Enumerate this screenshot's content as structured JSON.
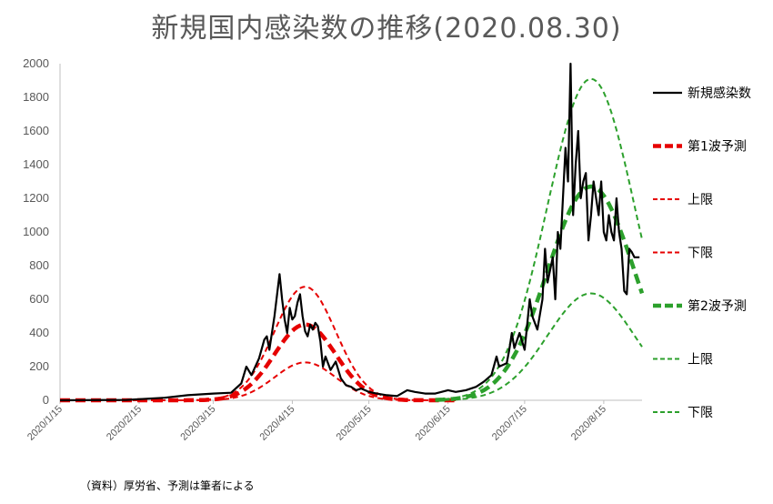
{
  "chart_data": {
    "type": "line",
    "title": "新規国内感染数の推移(2020.08.30)",
    "source_note": "（資料）厚労省、予測は筆者による",
    "xlabel": "",
    "ylabel": "",
    "ylim": [
      0,
      2000
    ],
    "xlim": [
      "2020-01-15",
      "2020-08-30"
    ],
    "y_ticks": [
      0,
      200,
      400,
      600,
      800,
      1000,
      1200,
      1400,
      1600,
      1800,
      2000
    ],
    "x_ticks": [
      {
        "date": "2020-01-15",
        "label": "2020/1/15"
      },
      {
        "date": "2020-02-15",
        "label": "2020/2/15"
      },
      {
        "date": "2020-03-15",
        "label": "2020/3/15"
      },
      {
        "date": "2020-04-15",
        "label": "2020/4/15"
      },
      {
        "date": "2020-05-15",
        "label": "2020/5/15"
      },
      {
        "date": "2020-06-15",
        "label": "2020/6/15"
      },
      {
        "date": "2020-07-15",
        "label": "2020/7/15"
      },
      {
        "date": "2020-08-15",
        "label": "2020/8/15"
      }
    ],
    "grid": false,
    "legend_position": "right",
    "series": [
      {
        "name": "新規感染数",
        "color": "#000000",
        "style": "solid",
        "width": 2.2,
        "points": [
          [
            "2020-01-15",
            0
          ],
          [
            "2020-02-10",
            2
          ],
          [
            "2020-02-25",
            15
          ],
          [
            "2020-03-05",
            30
          ],
          [
            "2020-03-15",
            40
          ],
          [
            "2020-03-22",
            45
          ],
          [
            "2020-03-26",
            100
          ],
          [
            "2020-03-28",
            200
          ],
          [
            "2020-03-30",
            150
          ],
          [
            "2020-04-02",
            250
          ],
          [
            "2020-04-04",
            360
          ],
          [
            "2020-04-05",
            380
          ],
          [
            "2020-04-06",
            300
          ],
          [
            "2020-04-08",
            500
          ],
          [
            "2020-04-10",
            750
          ],
          [
            "2020-04-11",
            600
          ],
          [
            "2020-04-12",
            480
          ],
          [
            "2020-04-13",
            400
          ],
          [
            "2020-04-14",
            550
          ],
          [
            "2020-04-15",
            480
          ],
          [
            "2020-04-16",
            500
          ],
          [
            "2020-04-17",
            580
          ],
          [
            "2020-04-18",
            630
          ],
          [
            "2020-04-19",
            500
          ],
          [
            "2020-04-20",
            410
          ],
          [
            "2020-04-21",
            380
          ],
          [
            "2020-04-22",
            450
          ],
          [
            "2020-04-23",
            420
          ],
          [
            "2020-04-24",
            460
          ],
          [
            "2020-04-25",
            440
          ],
          [
            "2020-04-26",
            350
          ],
          [
            "2020-04-27",
            200
          ],
          [
            "2020-04-28",
            260
          ],
          [
            "2020-04-30",
            180
          ],
          [
            "2020-05-02",
            230
          ],
          [
            "2020-05-04",
            130
          ],
          [
            "2020-05-06",
            90
          ],
          [
            "2020-05-08",
            80
          ],
          [
            "2020-05-10",
            60
          ],
          [
            "2020-05-12",
            70
          ],
          [
            "2020-05-15",
            50
          ],
          [
            "2020-05-18",
            40
          ],
          [
            "2020-05-22",
            30
          ],
          [
            "2020-05-26",
            25
          ],
          [
            "2020-05-30",
            60
          ],
          [
            "2020-06-02",
            50
          ],
          [
            "2020-06-06",
            40
          ],
          [
            "2020-06-10",
            40
          ],
          [
            "2020-06-15",
            60
          ],
          [
            "2020-06-18",
            50
          ],
          [
            "2020-06-22",
            60
          ],
          [
            "2020-06-26",
            80
          ],
          [
            "2020-06-29",
            110
          ],
          [
            "2020-07-02",
            150
          ],
          [
            "2020-07-04",
            260
          ],
          [
            "2020-07-05",
            200
          ],
          [
            "2020-07-08",
            220
          ],
          [
            "2020-07-09",
            300
          ],
          [
            "2020-07-10",
            400
          ],
          [
            "2020-07-11",
            310
          ],
          [
            "2020-07-13",
            400
          ],
          [
            "2020-07-15",
            300
          ],
          [
            "2020-07-16",
            450
          ],
          [
            "2020-07-17",
            600
          ],
          [
            "2020-07-18",
            500
          ],
          [
            "2020-07-20",
            420
          ],
          [
            "2020-07-22",
            600
          ],
          [
            "2020-07-23",
            900
          ],
          [
            "2020-07-24",
            700
          ],
          [
            "2020-07-26",
            850
          ],
          [
            "2020-07-27",
            600
          ],
          [
            "2020-07-28",
            1000
          ],
          [
            "2020-07-29",
            900
          ],
          [
            "2020-07-30",
            1200
          ],
          [
            "2020-07-31",
            1500
          ],
          [
            "2020-08-01",
            1300
          ],
          [
            "2020-08-02",
            2000
          ],
          [
            "2020-08-03",
            1100
          ],
          [
            "2020-08-04",
            1400
          ],
          [
            "2020-08-05",
            1600
          ],
          [
            "2020-08-06",
            1200
          ],
          [
            "2020-08-07",
            1300
          ],
          [
            "2020-08-08",
            1350
          ],
          [
            "2020-08-09",
            950
          ],
          [
            "2020-08-10",
            1100
          ],
          [
            "2020-08-11",
            1300
          ],
          [
            "2020-08-12",
            1200
          ],
          [
            "2020-08-13",
            1100
          ],
          [
            "2020-08-14",
            1300
          ],
          [
            "2020-08-15",
            1000
          ],
          [
            "2020-08-16",
            950
          ],
          [
            "2020-08-17",
            1100
          ],
          [
            "2020-08-18",
            1000
          ],
          [
            "2020-08-19",
            950
          ],
          [
            "2020-08-20",
            1200
          ],
          [
            "2020-08-21",
            1000
          ],
          [
            "2020-08-22",
            900
          ],
          [
            "2020-08-23",
            650
          ],
          [
            "2020-08-24",
            630
          ],
          [
            "2020-08-25",
            900
          ],
          [
            "2020-08-26",
            880
          ],
          [
            "2020-08-27",
            850
          ],
          [
            "2020-08-29",
            850
          ]
        ]
      },
      {
        "name": "第1波予測",
        "color": "#e60000",
        "style": "dash",
        "width": 4.5,
        "gaussian": {
          "peak_date": "2020-04-20",
          "peak": 450,
          "sigma_days": 12,
          "start": "2020-01-15",
          "end": "2020-06-18"
        }
      },
      {
        "name": "上限",
        "color": "#e60000",
        "style": "dash",
        "width": 2,
        "gaussian": {
          "peak_date": "2020-04-20",
          "peak": 675,
          "sigma_days": 12,
          "start": "2020-01-15",
          "end": "2020-06-18"
        }
      },
      {
        "name": "下限",
        "color": "#e60000",
        "style": "dash",
        "width": 2,
        "gaussian": {
          "peak_date": "2020-04-20",
          "peak": 225,
          "sigma_days": 12,
          "start": "2020-01-15",
          "end": "2020-06-18"
        }
      },
      {
        "name": "第2波予測",
        "color": "#2ca02c",
        "style": "dash",
        "width": 4.5,
        "gaussian": {
          "peak_date": "2020-08-10",
          "peak": 1270,
          "sigma_days": 17,
          "start": "2020-06-10",
          "end": "2020-08-30"
        }
      },
      {
        "name": "上限",
        "color": "#2ca02c",
        "style": "dash",
        "width": 2,
        "gaussian": {
          "peak_date": "2020-08-10",
          "peak": 1910,
          "sigma_days": 17,
          "start": "2020-06-10",
          "end": "2020-08-30"
        }
      },
      {
        "name": "下限",
        "color": "#2ca02c",
        "style": "dash",
        "width": 2,
        "gaussian": {
          "peak_date": "2020-08-10",
          "peak": 635,
          "sigma_days": 17,
          "start": "2020-06-10",
          "end": "2020-08-30"
        }
      }
    ]
  }
}
